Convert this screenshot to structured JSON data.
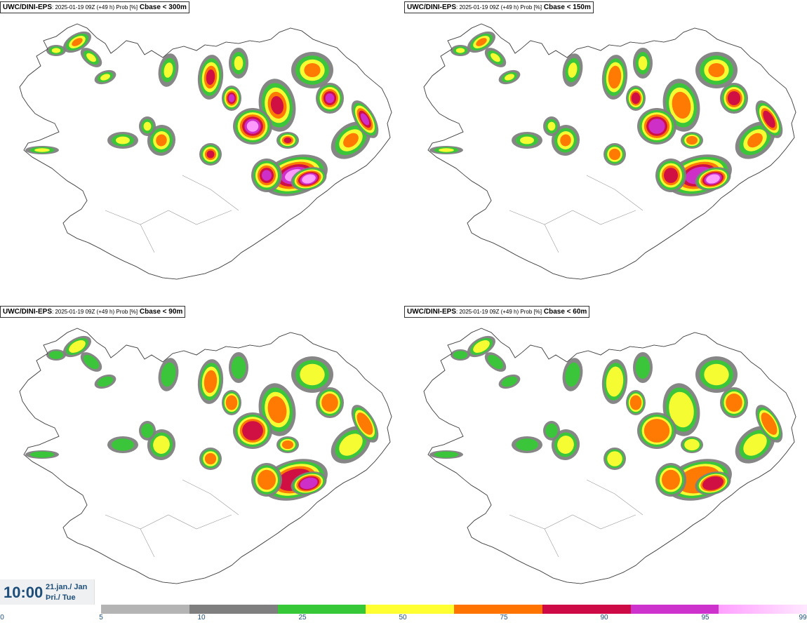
{
  "panels": [
    {
      "model": "UWC/DINI-EPS",
      "run": ": 2025-01-19 09Z (+49 h) Prob [%]",
      "param": "Cbase < 300m",
      "intensity": 1.0
    },
    {
      "model": "UWC/DINI-EPS",
      "run": ": 2025-01-19 09Z (+49 h) Prob [%]",
      "param": "Cbase < 150m",
      "intensity": 0.85
    },
    {
      "model": "UWC/DINI-EPS",
      "run": ": 2025-01-19 09Z (+49 h) Prob [%]",
      "param": "Cbase < 90m",
      "intensity": 0.65
    },
    {
      "model": "UWC/DINI-EPS",
      "run": ": 2025-01-19 09Z (+49 h) Prob [%]",
      "param": "Cbase < 60m",
      "intensity": 0.5
    }
  ],
  "valid_time": {
    "time": "10:00",
    "date_line1": "21.jan./ Jan",
    "date_line2": "Þri./ Tue"
  },
  "legend": {
    "labels": [
      "0",
      "5",
      "10",
      "25",
      "50",
      "75",
      "90",
      "95",
      "99"
    ],
    "colors": [
      "#b4b4b4",
      "#7f7f7f",
      "#37c837",
      "#ffff32",
      "#ff7300",
      "#cd0a46",
      "#cd32cd",
      "#ffa0ff"
    ]
  }
}
